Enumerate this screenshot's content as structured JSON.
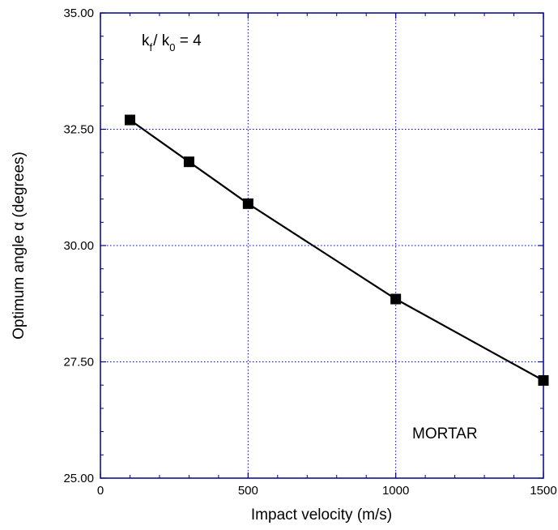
{
  "chart_data": {
    "type": "line",
    "xlabel": "Impact velocity (m/s)",
    "ylabel": "Optimum angle α (degrees)",
    "xlim": [
      0,
      1500
    ],
    "ylim": [
      25.0,
      35.0
    ],
    "x_ticks": [
      0,
      500,
      1000,
      1500
    ],
    "x_tick_labels": [
      "0",
      "500",
      "1000",
      "1500"
    ],
    "y_ticks": [
      25.0,
      27.5,
      30.0,
      32.5,
      35.0
    ],
    "y_tick_labels": [
      "25.00",
      "27.50",
      "30.00",
      "32.50",
      "35.00"
    ],
    "grid": true,
    "series": [
      {
        "x": [
          100,
          300,
          500,
          1000,
          1500
        ],
        "values": [
          32.7,
          31.8,
          30.9,
          28.85,
          27.1
        ],
        "marker": "square",
        "color": "#000000"
      }
    ],
    "annotations": {
      "ratio_k1": "k",
      "ratio_sub1": "f",
      "ratio_slash": "/ ",
      "ratio_k2": "k",
      "ratio_sub2": "0",
      "ratio_eq": " = 4",
      "material": "MORTAR"
    },
    "colors": {
      "frame": "#00008b",
      "grid": "#0000cc",
      "line": "#000000"
    }
  }
}
